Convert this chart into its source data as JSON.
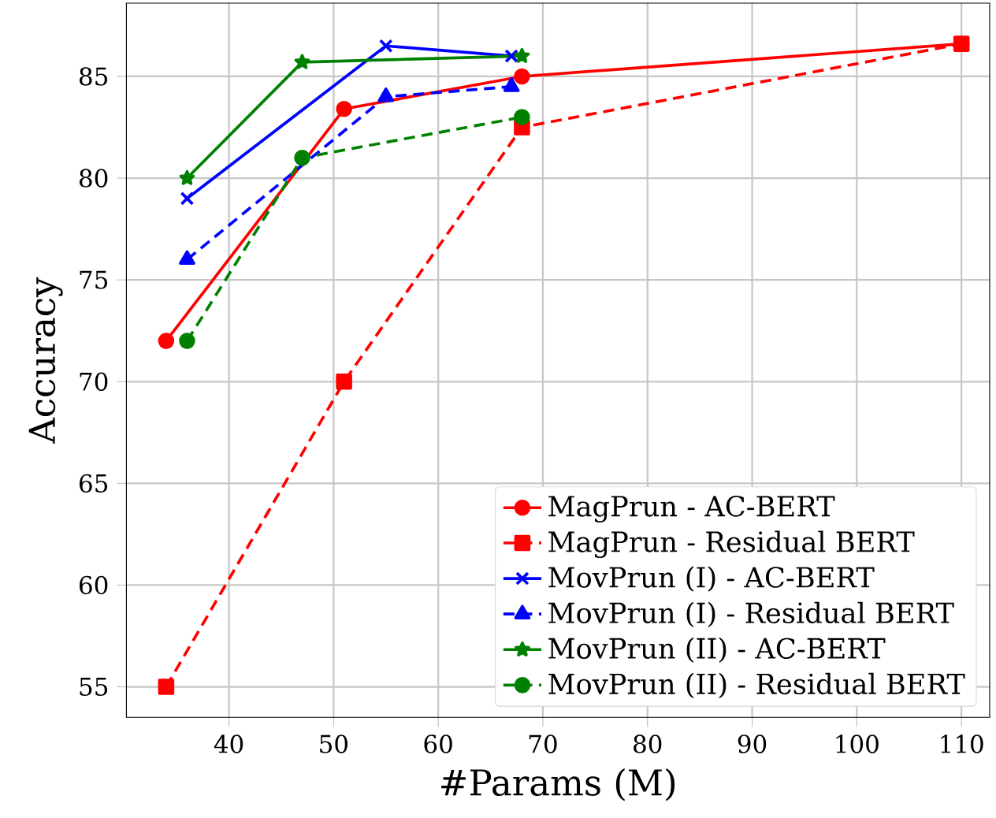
{
  "chart_data": {
    "type": "line",
    "xlabel": "#Params (M)",
    "ylabel": "Accuracy",
    "xlim": [
      30.2,
      112.7
    ],
    "ylim": [
      53.5,
      88.6
    ],
    "xticks": [
      40,
      50,
      60,
      70,
      80,
      90,
      100,
      110
    ],
    "yticks": [
      55,
      60,
      65,
      70,
      75,
      80,
      85
    ],
    "grid": true,
    "legend": "bottom right",
    "series": [
      {
        "name": "MagPrun - AC-BERT",
        "color": "#ff0000",
        "marker": "circle",
        "line_style": "solid",
        "x": [
          34,
          51,
          68,
          110
        ],
        "values": [
          72,
          83.4,
          85,
          86.6
        ]
      },
      {
        "name": "MagPrun - Residual BERT",
        "color": "#ff0000",
        "marker": "square",
        "line_style": "dashed",
        "x": [
          34,
          51,
          68,
          110
        ],
        "values": [
          55,
          70,
          82.5,
          86.6
        ]
      },
      {
        "name": "MovPrun (I) - AC-BERT",
        "color": "#0000ff",
        "marker": "cross",
        "line_style": "solid",
        "x": [
          36,
          55,
          67
        ],
        "values": [
          79,
          86.5,
          86
        ]
      },
      {
        "name": "MovPrun (I) - Residual BERT",
        "color": "#0000ff",
        "marker": "triangle",
        "line_style": "dashed",
        "x": [
          36,
          55,
          67
        ],
        "values": [
          76,
          84,
          84.5
        ]
      },
      {
        "name": "MovPrun (II) - AC-BERT",
        "color": "#008000",
        "marker": "star",
        "line_style": "solid",
        "x": [
          36,
          47,
          68
        ],
        "values": [
          80,
          85.7,
          86
        ]
      },
      {
        "name": "MovPrun (II) - Residual BERT",
        "color": "#008000",
        "marker": "circle",
        "line_style": "dashed",
        "x": [
          36,
          47,
          68
        ],
        "values": [
          72,
          81,
          83
        ]
      }
    ]
  }
}
